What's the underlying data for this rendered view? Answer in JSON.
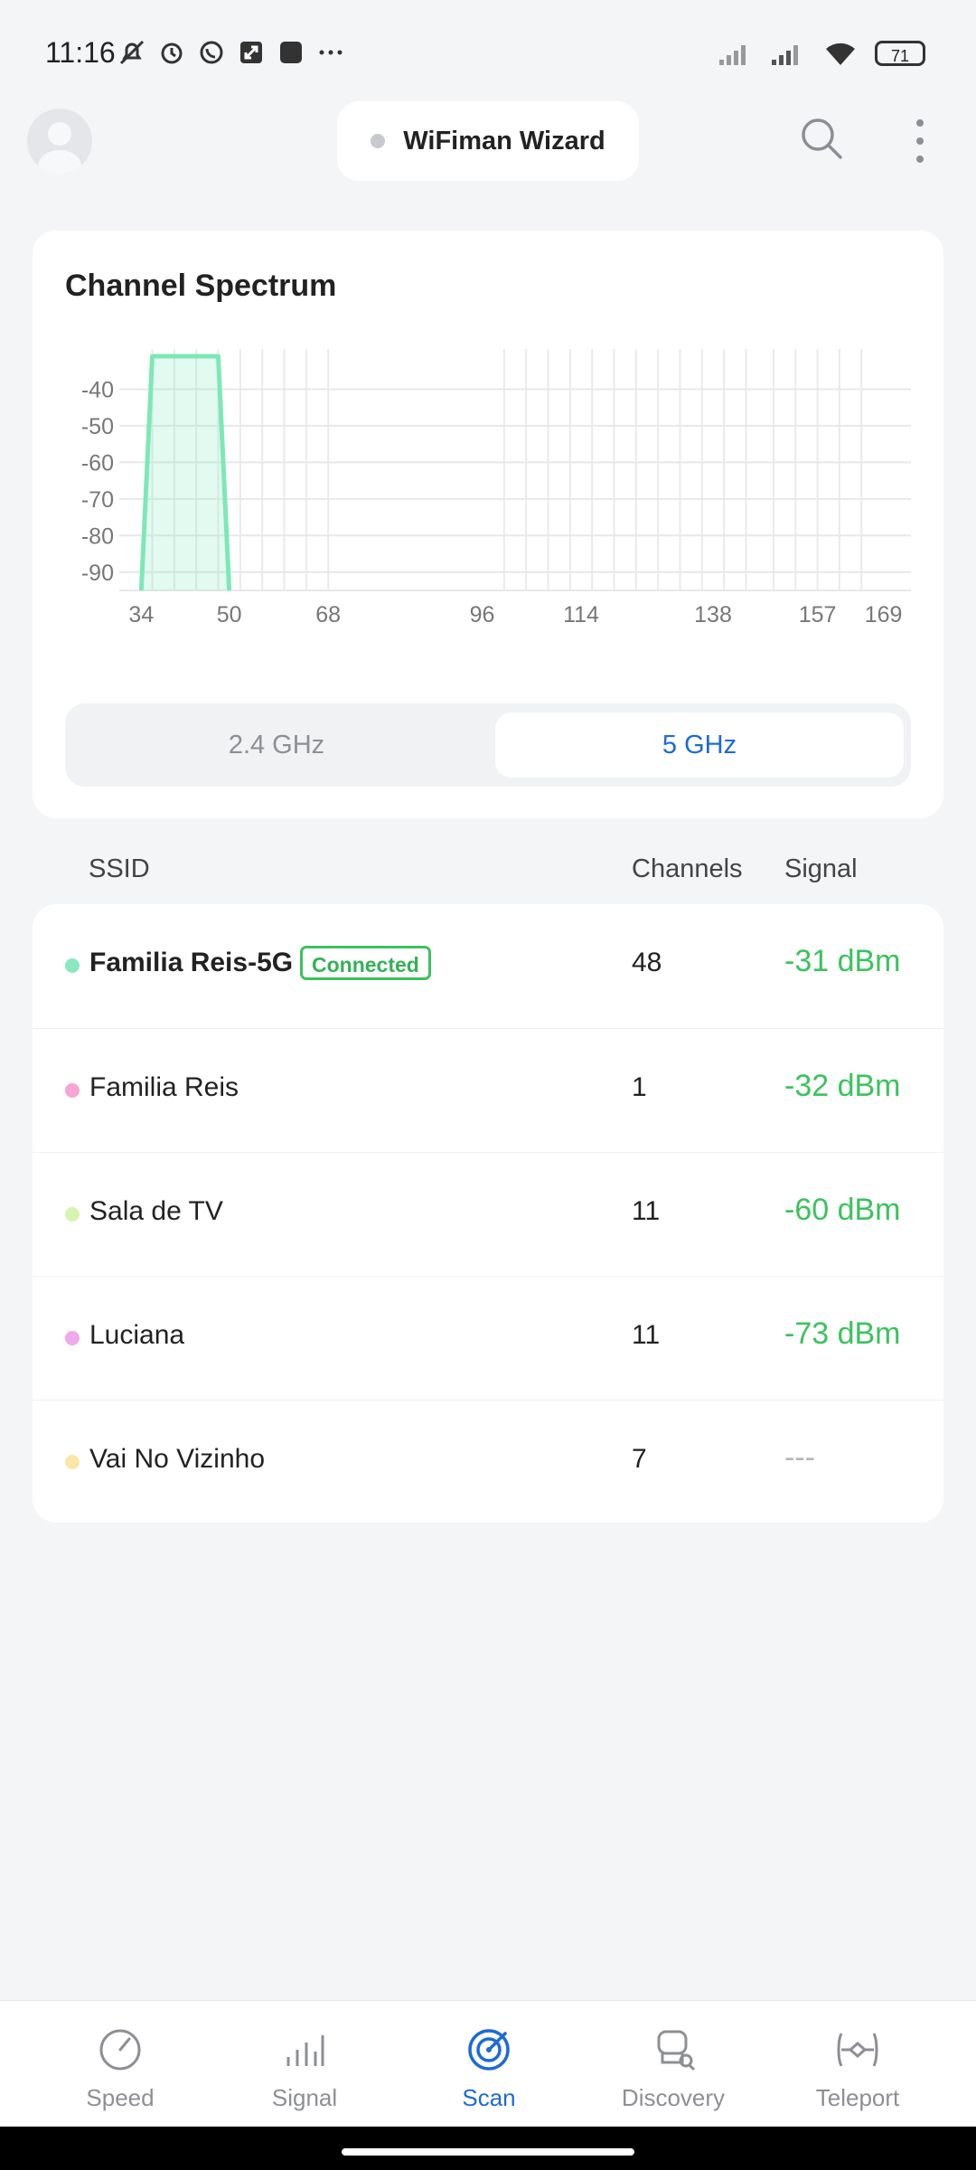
{
  "status_bar": {
    "time": "11:16",
    "battery": "71"
  },
  "header": {
    "title": "WiFiman Wizard",
    "status_color": "#c8c9ce"
  },
  "spectrum": {
    "title": "Channel Spectrum",
    "bands": [
      "2.4 GHz",
      "5 GHz"
    ],
    "selected_band": "5 GHz",
    "chart_data": {
      "type": "area",
      "title": "",
      "ylim": [
        -95,
        -30
      ],
      "y_ticks": [
        "-40",
        "-50",
        "-60",
        "-70",
        "-80",
        "-90"
      ],
      "x_ticks": [
        "34",
        "50",
        "68",
        "96",
        "114",
        "138",
        "157",
        "169"
      ],
      "series": [
        {
          "channels_x": [
            34,
            36,
            48,
            50
          ],
          "dbm_y": [
            -95,
            -31,
            -31,
            -95
          ],
          "color": "#7de8b6"
        }
      ],
      "grid": true
    }
  },
  "table": {
    "columns": {
      "ssid": "SSID",
      "channels": "Channels",
      "signal": "Signal"
    },
    "rows": [
      {
        "ssid": "Familia Reis-5G",
        "badge": "Connected",
        "channel": "48",
        "signal": "-31 dBm",
        "color": "#8ae8c0"
      },
      {
        "ssid": "Familia Reis",
        "channel": "1",
        "signal": "-32 dBm",
        "color": "#f5a6d2"
      },
      {
        "ssid": "Sala de TV",
        "channel": "11",
        "signal": "-60 dBm",
        "color": "#d6f5b0"
      },
      {
        "ssid": "Luciana",
        "channel": "11",
        "signal": "-73 dBm",
        "color": "#f0a8ee"
      },
      {
        "ssid": "Vai No Vizinho",
        "channel": "7",
        "signal": "---",
        "color": "#fbe6a8"
      }
    ]
  },
  "nav": {
    "items": [
      {
        "label": "Speed",
        "icon": "speed-icon"
      },
      {
        "label": "Signal",
        "icon": "signal-icon"
      },
      {
        "label": "Scan",
        "icon": "scan-icon"
      },
      {
        "label": "Discovery",
        "icon": "discovery-icon"
      },
      {
        "label": "Teleport",
        "icon": "teleport-icon"
      }
    ],
    "active": "Scan"
  },
  "colors": {
    "accent": "#1e6ad6",
    "signal_good": "#3cc25e",
    "spectrum_fill": "#7de8b6"
  }
}
